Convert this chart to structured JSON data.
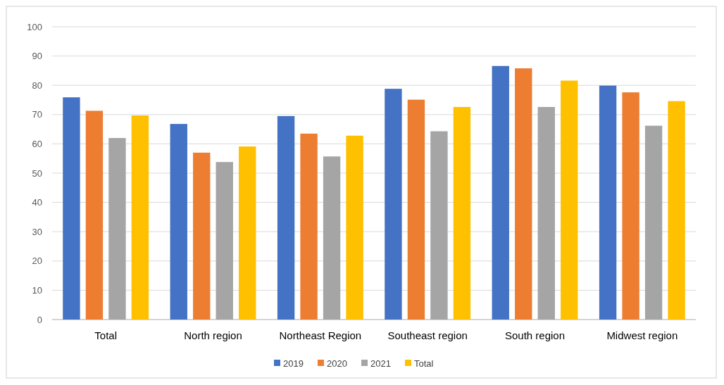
{
  "chart_data": {
    "type": "bar",
    "categories": [
      "Total",
      "North region",
      "Northeast Region",
      "Southeast region",
      "South region",
      "Midwest region"
    ],
    "series": [
      {
        "name": "2019",
        "color": "#4472c4",
        "values": [
          75.9,
          66.8,
          69.5,
          78.8,
          86.6,
          79.9
        ]
      },
      {
        "name": "2020",
        "color": "#ed7d31",
        "values": [
          71.3,
          57,
          63.5,
          75.1,
          85.8,
          77.6
        ]
      },
      {
        "name": "2021",
        "color": "#a5a5a5",
        "values": [
          62,
          53.8,
          55.7,
          64.3,
          72.6,
          66.2
        ]
      },
      {
        "name": "Total",
        "color": "#ffc000",
        "values": [
          69.7,
          59.1,
          62.8,
          72.6,
          81.6,
          74.6
        ]
      }
    ],
    "ylim": [
      0,
      100
    ],
    "yticks": [
      0,
      10,
      20,
      30,
      40,
      50,
      60,
      70,
      80,
      90,
      100
    ],
    "grid": "y",
    "legend": "bottom"
  }
}
